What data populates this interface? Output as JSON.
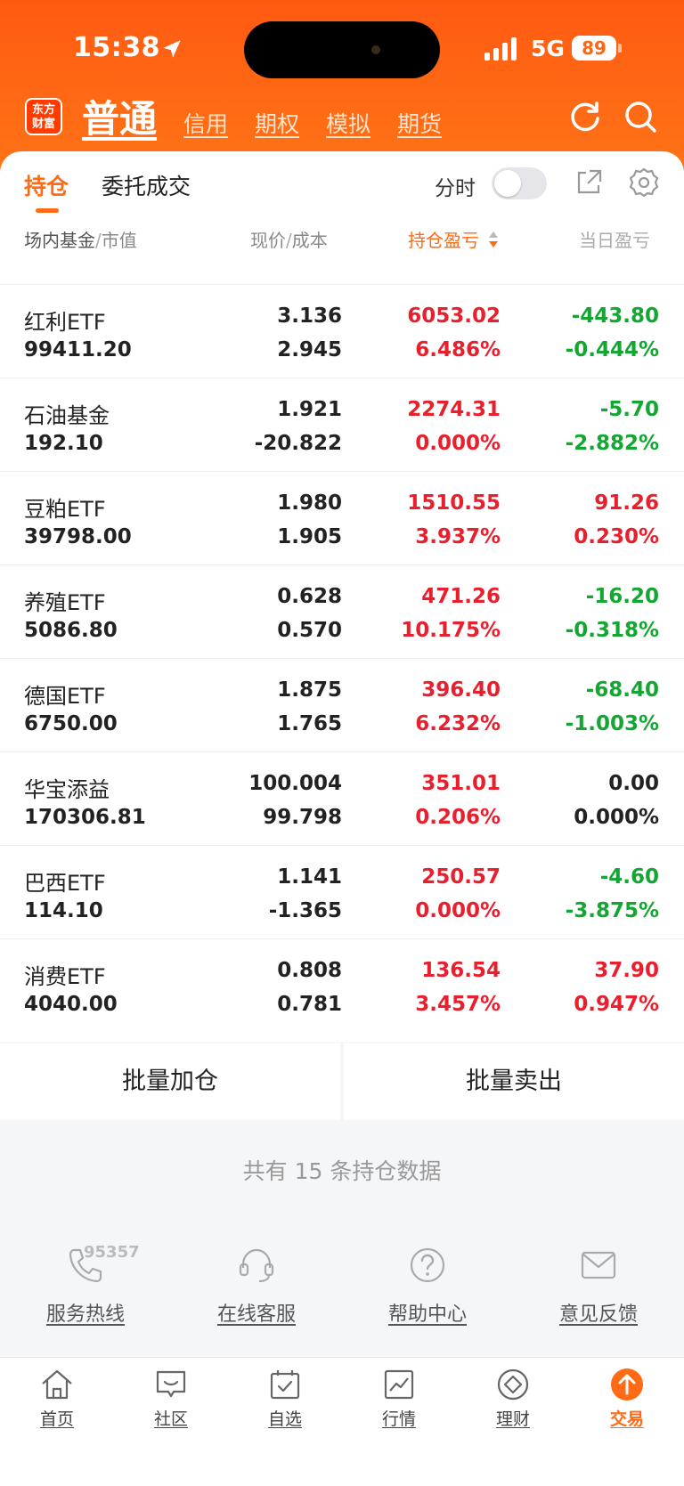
{
  "status_bar": {
    "time": "15:38",
    "network": "5G",
    "battery": "89"
  },
  "header": {
    "logo_text": "东方财富",
    "active_mode": "普通",
    "modes": [
      "信用",
      "期权",
      "模拟",
      "期货"
    ]
  },
  "tabs": {
    "holdings": "持仓",
    "orders": "委托成交",
    "intraday_label": "分时",
    "intraday_on": false
  },
  "columns": {
    "name": "场内基金",
    "market_value": "市值",
    "price": "现价",
    "cost": "成本",
    "pl": "持仓盈亏",
    "daily_pl": "当日盈亏"
  },
  "rows": [
    {
      "name": "红利ETF",
      "market_value": "99411.20",
      "price": "3.136",
      "cost": "2.945",
      "pl": "6053.02",
      "pl_pct": "6.486%",
      "daily": "-443.80",
      "daily_pct": "-0.444%",
      "pl_color": "red",
      "daily_color": "green"
    },
    {
      "name": "石油基金",
      "market_value": "192.10",
      "price": "1.921",
      "cost": "-20.822",
      "pl": "2274.31",
      "pl_pct": "0.000%",
      "daily": "-5.70",
      "daily_pct": "-2.882%",
      "pl_color": "red",
      "daily_color": "green"
    },
    {
      "name": "豆粕ETF",
      "market_value": "39798.00",
      "price": "1.980",
      "cost": "1.905",
      "pl": "1510.55",
      "pl_pct": "3.937%",
      "daily": "91.26",
      "daily_pct": "0.230%",
      "pl_color": "red",
      "daily_color": "red"
    },
    {
      "name": "养殖ETF",
      "market_value": "5086.80",
      "price": "0.628",
      "cost": "0.570",
      "pl": "471.26",
      "pl_pct": "10.175%",
      "daily": "-16.20",
      "daily_pct": "-0.318%",
      "pl_color": "red",
      "daily_color": "green"
    },
    {
      "name": "德国ETF",
      "market_value": "6750.00",
      "price": "1.875",
      "cost": "1.765",
      "pl": "396.40",
      "pl_pct": "6.232%",
      "daily": "-68.40",
      "daily_pct": "-1.003%",
      "pl_color": "red",
      "daily_color": "green"
    },
    {
      "name": "华宝添益",
      "market_value": "170306.81",
      "price": "100.004",
      "cost": "99.798",
      "pl": "351.01",
      "pl_pct": "0.206%",
      "daily": "0.00",
      "daily_pct": "0.000%",
      "pl_color": "red",
      "daily_color": "black"
    },
    {
      "name": "巴西ETF",
      "market_value": "114.10",
      "price": "1.141",
      "cost": "-1.365",
      "pl": "250.57",
      "pl_pct": "0.000%",
      "daily": "-4.60",
      "daily_pct": "-3.875%",
      "pl_color": "red",
      "daily_color": "green"
    },
    {
      "name": "消费ETF",
      "market_value": "4040.00",
      "price": "0.808",
      "cost": "0.781",
      "pl": "136.54",
      "pl_pct": "3.457%",
      "daily": "37.90",
      "daily_pct": "0.947%",
      "pl_color": "red",
      "daily_color": "red"
    }
  ],
  "batch": {
    "add": "批量加仓",
    "sell": "批量卖出"
  },
  "summary": "共有 15 条持仓数据",
  "services": {
    "hotline_number": "95357",
    "items": [
      "服务热线",
      "在线客服",
      "帮助中心",
      "意见反馈"
    ]
  },
  "bottom_nav": {
    "items": [
      "首页",
      "社区",
      "自选",
      "行情",
      "理财",
      "交易"
    ],
    "active": "交易"
  },
  "colors": {
    "accent": "#ff6a14",
    "up": "#e8202e",
    "down": "#13a632"
  }
}
